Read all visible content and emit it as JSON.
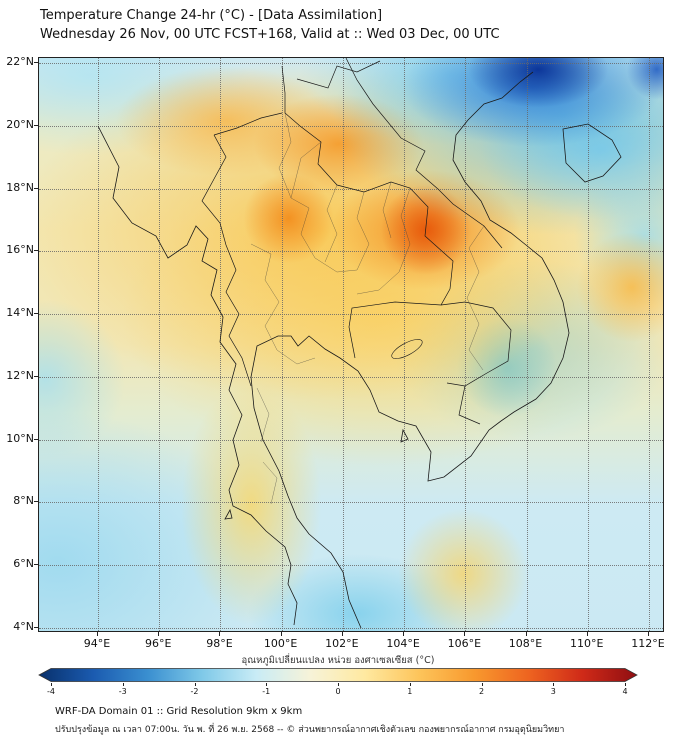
{
  "header": {
    "title": "Temperature Change 24-hr (°C) - [Data Assimilation]",
    "subtitle": "Wednesday 26 Nov, 00 UTC FCST+168, Valid at :: Wed 03 Dec, 00 UTC"
  },
  "map": {
    "lat_ticks": [
      "22°N",
      "20°N",
      "18°N",
      "16°N",
      "14°N",
      "12°N",
      "10°N",
      "8°N",
      "6°N",
      "4°N"
    ],
    "lon_ticks": [
      "94°E",
      "96°E",
      "98°E",
      "100°E",
      "102°E",
      "104°E",
      "106°E",
      "108°E",
      "110°E",
      "112°E"
    ]
  },
  "colorbar": {
    "label": "อุณหภูมิเปลี่ยนแปลง หน่วย องศาเซลเซียส (°C)",
    "ticks": [
      "-4",
      "-3",
      "-2",
      "-1",
      "0",
      "1",
      "2",
      "3",
      "4"
    ],
    "min": -4,
    "max": 4,
    "stops": [
      "#08306b",
      "#1b5bb0",
      "#3a8fd0",
      "#7fc9e8",
      "#c9ecf6",
      "#f7f3d8",
      "#ffe9a0",
      "#fdc45a",
      "#f8992e",
      "#ee6420",
      "#cf2a18",
      "#8f0e12"
    ]
  },
  "footer": {
    "line1": "WRF-DA Domain 01 :: Grid Resolution 9km x 9km",
    "line2": "ปรับปรุงข้อมูล ณ เวลา 07:00น. วัน พ. ที่ 26 พ.ย. 2568 -- © ส่วนพยากรณ์อากาศเชิงตัวเลข กองพยากรณ์อากาศ กรมอุตุนิยมวิทยา"
  }
}
